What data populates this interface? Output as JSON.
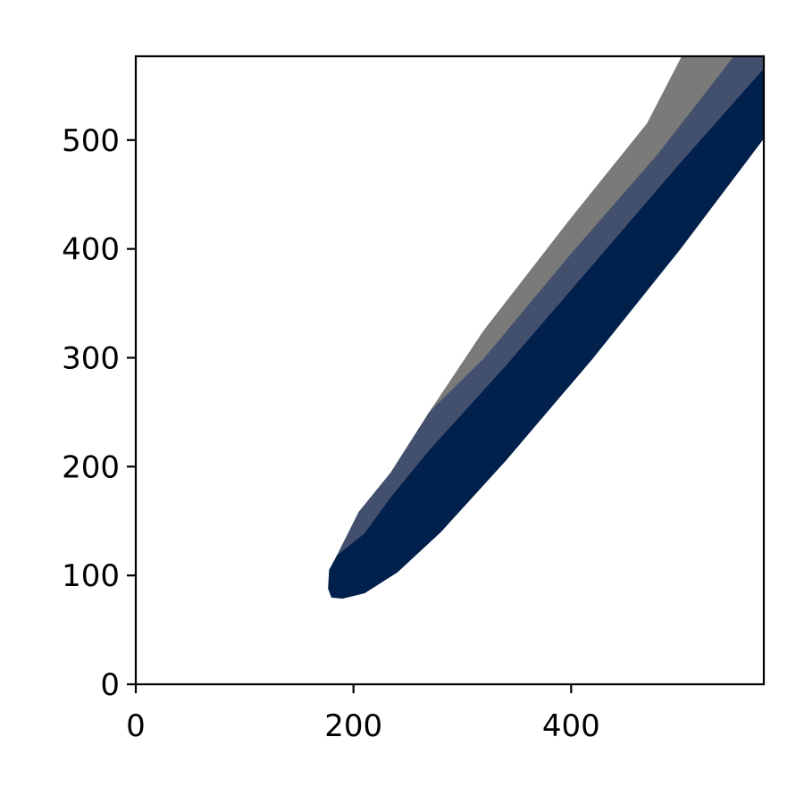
{
  "chart_data": {
    "type": "area",
    "title": "",
    "xlabel": "",
    "ylabel": "",
    "xlim": [
      0,
      577
    ],
    "ylim": [
      0,
      577
    ],
    "xticks": [
      0,
      200,
      400
    ],
    "yticks": [
      0,
      100,
      200,
      300,
      400,
      500
    ],
    "grid": false,
    "legend": "none",
    "series": [
      {
        "color": "#7a7a78",
        "polygon": [
          [
            235,
            195
          ],
          [
            270,
            250
          ],
          [
            320,
            325
          ],
          [
            400,
            428
          ],
          [
            470,
            515
          ],
          [
            502,
            577
          ],
          [
            550,
            577
          ],
          [
            480,
            487
          ],
          [
            400,
            395
          ],
          [
            320,
            299
          ],
          [
            270,
            250
          ],
          [
            235,
            195
          ]
        ]
      },
      {
        "color": "#42506e",
        "polygon": [
          [
            185,
            118
          ],
          [
            205,
            158
          ],
          [
            235,
            195
          ],
          [
            270,
            250
          ],
          [
            320,
            299
          ],
          [
            400,
            395
          ],
          [
            480,
            487
          ],
          [
            550,
            577
          ],
          [
            577,
            577
          ],
          [
            577,
            565
          ],
          [
            500,
            478
          ],
          [
            420,
            385
          ],
          [
            340,
            292
          ],
          [
            270,
            215
          ],
          [
            235,
            172
          ],
          [
            210,
            138
          ],
          [
            185,
            118
          ]
        ]
      },
      {
        "color": "#02204c",
        "polygon": [
          [
            177,
            88
          ],
          [
            180,
            80
          ],
          [
            190,
            79
          ],
          [
            210,
            84
          ],
          [
            240,
            103
          ],
          [
            280,
            140
          ],
          [
            340,
            206
          ],
          [
            420,
            300
          ],
          [
            500,
            400
          ],
          [
            577,
            502
          ],
          [
            577,
            565
          ],
          [
            500,
            478
          ],
          [
            420,
            385
          ],
          [
            340,
            292
          ],
          [
            270,
            215
          ],
          [
            235,
            172
          ],
          [
            210,
            138
          ],
          [
            185,
            118
          ],
          [
            178,
            105
          ],
          [
            177,
            88
          ]
        ]
      }
    ]
  }
}
